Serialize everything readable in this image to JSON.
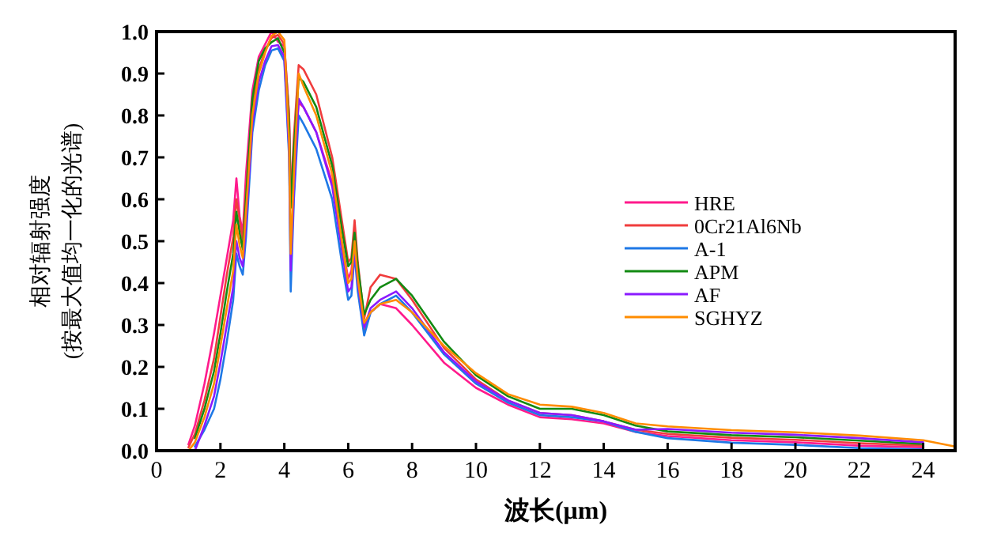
{
  "chart_data": {
    "type": "line",
    "xlabel": "波长(μm)",
    "ylabel": "相对辐射强度\n(按最大值均一化的光谱)",
    "xlim": [
      0,
      25
    ],
    "ylim": [
      0,
      1.0
    ],
    "xticks": [
      0,
      2,
      4,
      6,
      8,
      10,
      12,
      14,
      16,
      18,
      20,
      22,
      24
    ],
    "yticks": [
      {
        "value": 0,
        "label": "0.0"
      },
      0.1,
      0.2,
      0.3,
      0.4,
      0.5,
      0.6,
      0.7,
      0.8,
      0.9,
      {
        "value": 1,
        "label": "1.0"
      }
    ],
    "legend": "right",
    "grid": false,
    "x": [
      0.8,
      1.0,
      1.2,
      1.5,
      1.8,
      2.0,
      2.2,
      2.4,
      2.5,
      2.6,
      2.7,
      2.8,
      3.0,
      3.2,
      3.4,
      3.6,
      3.8,
      4.0,
      4.15,
      4.2,
      4.3,
      4.45,
      4.6,
      5.0,
      5.5,
      5.8,
      6.0,
      6.1,
      6.2,
      6.3,
      6.5,
      6.7,
      7.0,
      7.5,
      8.0,
      9.0,
      10,
      11,
      12,
      13,
      14,
      15,
      16,
      18,
      20,
      22,
      24,
      25
    ],
    "series": [
      {
        "name": "HRE",
        "color": "#ff1a8c",
        "values": [
          null,
          0.015,
          0.06,
          0.16,
          0.28,
          0.37,
          0.46,
          0.55,
          0.65,
          0.56,
          0.52,
          0.66,
          0.86,
          0.94,
          0.97,
          1.0,
          0.976,
          0.965,
          0.8,
          0.62,
          0.7,
          0.83,
          0.82,
          0.76,
          0.64,
          0.5,
          0.41,
          0.43,
          0.5,
          0.42,
          0.285,
          0.33,
          0.35,
          0.34,
          0.3,
          0.21,
          0.15,
          0.11,
          0.08,
          0.075,
          0.065,
          0.045,
          0.035,
          0.025,
          0.02,
          0.012,
          0.008,
          null
        ]
      },
      {
        "name": "0Cr21Al6Nb",
        "color": "#f03c3c",
        "values": [
          null,
          0.008,
          0.04,
          0.12,
          0.22,
          0.32,
          0.42,
          0.51,
          0.6,
          0.55,
          0.5,
          0.62,
          0.82,
          0.91,
          0.955,
          0.985,
          0.992,
          0.97,
          0.8,
          0.6,
          0.75,
          0.92,
          0.91,
          0.85,
          0.7,
          0.55,
          0.45,
          0.46,
          0.55,
          0.45,
          0.315,
          0.39,
          0.42,
          0.41,
          0.36,
          0.245,
          0.17,
          0.12,
          0.09,
          0.085,
          0.07,
          0.05,
          0.04,
          0.031,
          0.026,
          0.018,
          0.012,
          null
        ]
      },
      {
        "name": "A-1",
        "color": "#1e78e6",
        "values": [
          null,
          null,
          0.01,
          0.05,
          0.1,
          0.17,
          0.26,
          0.36,
          0.47,
          0.44,
          0.42,
          0.51,
          0.76,
          0.86,
          0.92,
          0.955,
          0.96,
          0.93,
          0.7,
          0.38,
          0.6,
          0.8,
          0.78,
          0.72,
          0.6,
          0.45,
          0.36,
          0.37,
          0.47,
          0.38,
          0.275,
          0.33,
          0.35,
          0.37,
          0.33,
          0.23,
          0.16,
          0.115,
          0.085,
          0.08,
          0.07,
          0.045,
          0.03,
          0.019,
          0.014,
          0.006,
          0.003,
          null
        ]
      },
      {
        "name": "APM",
        "color": "#128a12",
        "values": [
          null,
          null,
          0.03,
          0.1,
          0.19,
          0.28,
          0.38,
          0.47,
          0.57,
          0.52,
          0.48,
          0.6,
          0.84,
          0.93,
          0.96,
          0.975,
          0.984,
          0.95,
          0.78,
          0.58,
          0.72,
          0.89,
          0.88,
          0.82,
          0.68,
          0.53,
          0.44,
          0.45,
          0.52,
          0.44,
          0.325,
          0.36,
          0.39,
          0.41,
          0.37,
          0.26,
          0.18,
          0.13,
          0.1,
          0.1,
          0.085,
          0.06,
          0.046,
          0.037,
          0.032,
          0.024,
          0.016,
          null
        ]
      },
      {
        "name": "AF",
        "color": "#8a1aff",
        "values": [
          null,
          null,
          0.0,
          0.06,
          0.13,
          0.21,
          0.3,
          0.39,
          0.5,
          0.46,
          0.44,
          0.54,
          0.78,
          0.88,
          0.93,
          0.965,
          0.968,
          0.94,
          0.72,
          0.43,
          0.62,
          0.84,
          0.82,
          0.76,
          0.63,
          0.48,
          0.38,
          0.39,
          0.48,
          0.4,
          0.295,
          0.34,
          0.36,
          0.38,
          0.34,
          0.235,
          0.165,
          0.12,
          0.09,
          0.085,
          0.07,
          0.05,
          0.052,
          0.043,
          0.038,
          0.03,
          0.02,
          null
        ]
      },
      {
        "name": "SGHYZ",
        "color": "#ff8c00",
        "values": [
          0,
          0,
          0.02,
          0.08,
          0.16,
          0.25,
          0.34,
          0.43,
          0.54,
          0.49,
          0.46,
          0.57,
          0.8,
          0.9,
          0.95,
          0.99,
          1.0,
          0.98,
          0.74,
          0.47,
          0.66,
          0.9,
          0.87,
          0.8,
          0.66,
          0.5,
          0.4,
          0.41,
          0.5,
          0.41,
          0.305,
          0.33,
          0.35,
          0.36,
          0.33,
          0.25,
          0.185,
          0.135,
          0.11,
          0.105,
          0.09,
          0.065,
          0.058,
          0.049,
          0.044,
          0.036,
          0.025,
          0.01
        ]
      }
    ]
  }
}
